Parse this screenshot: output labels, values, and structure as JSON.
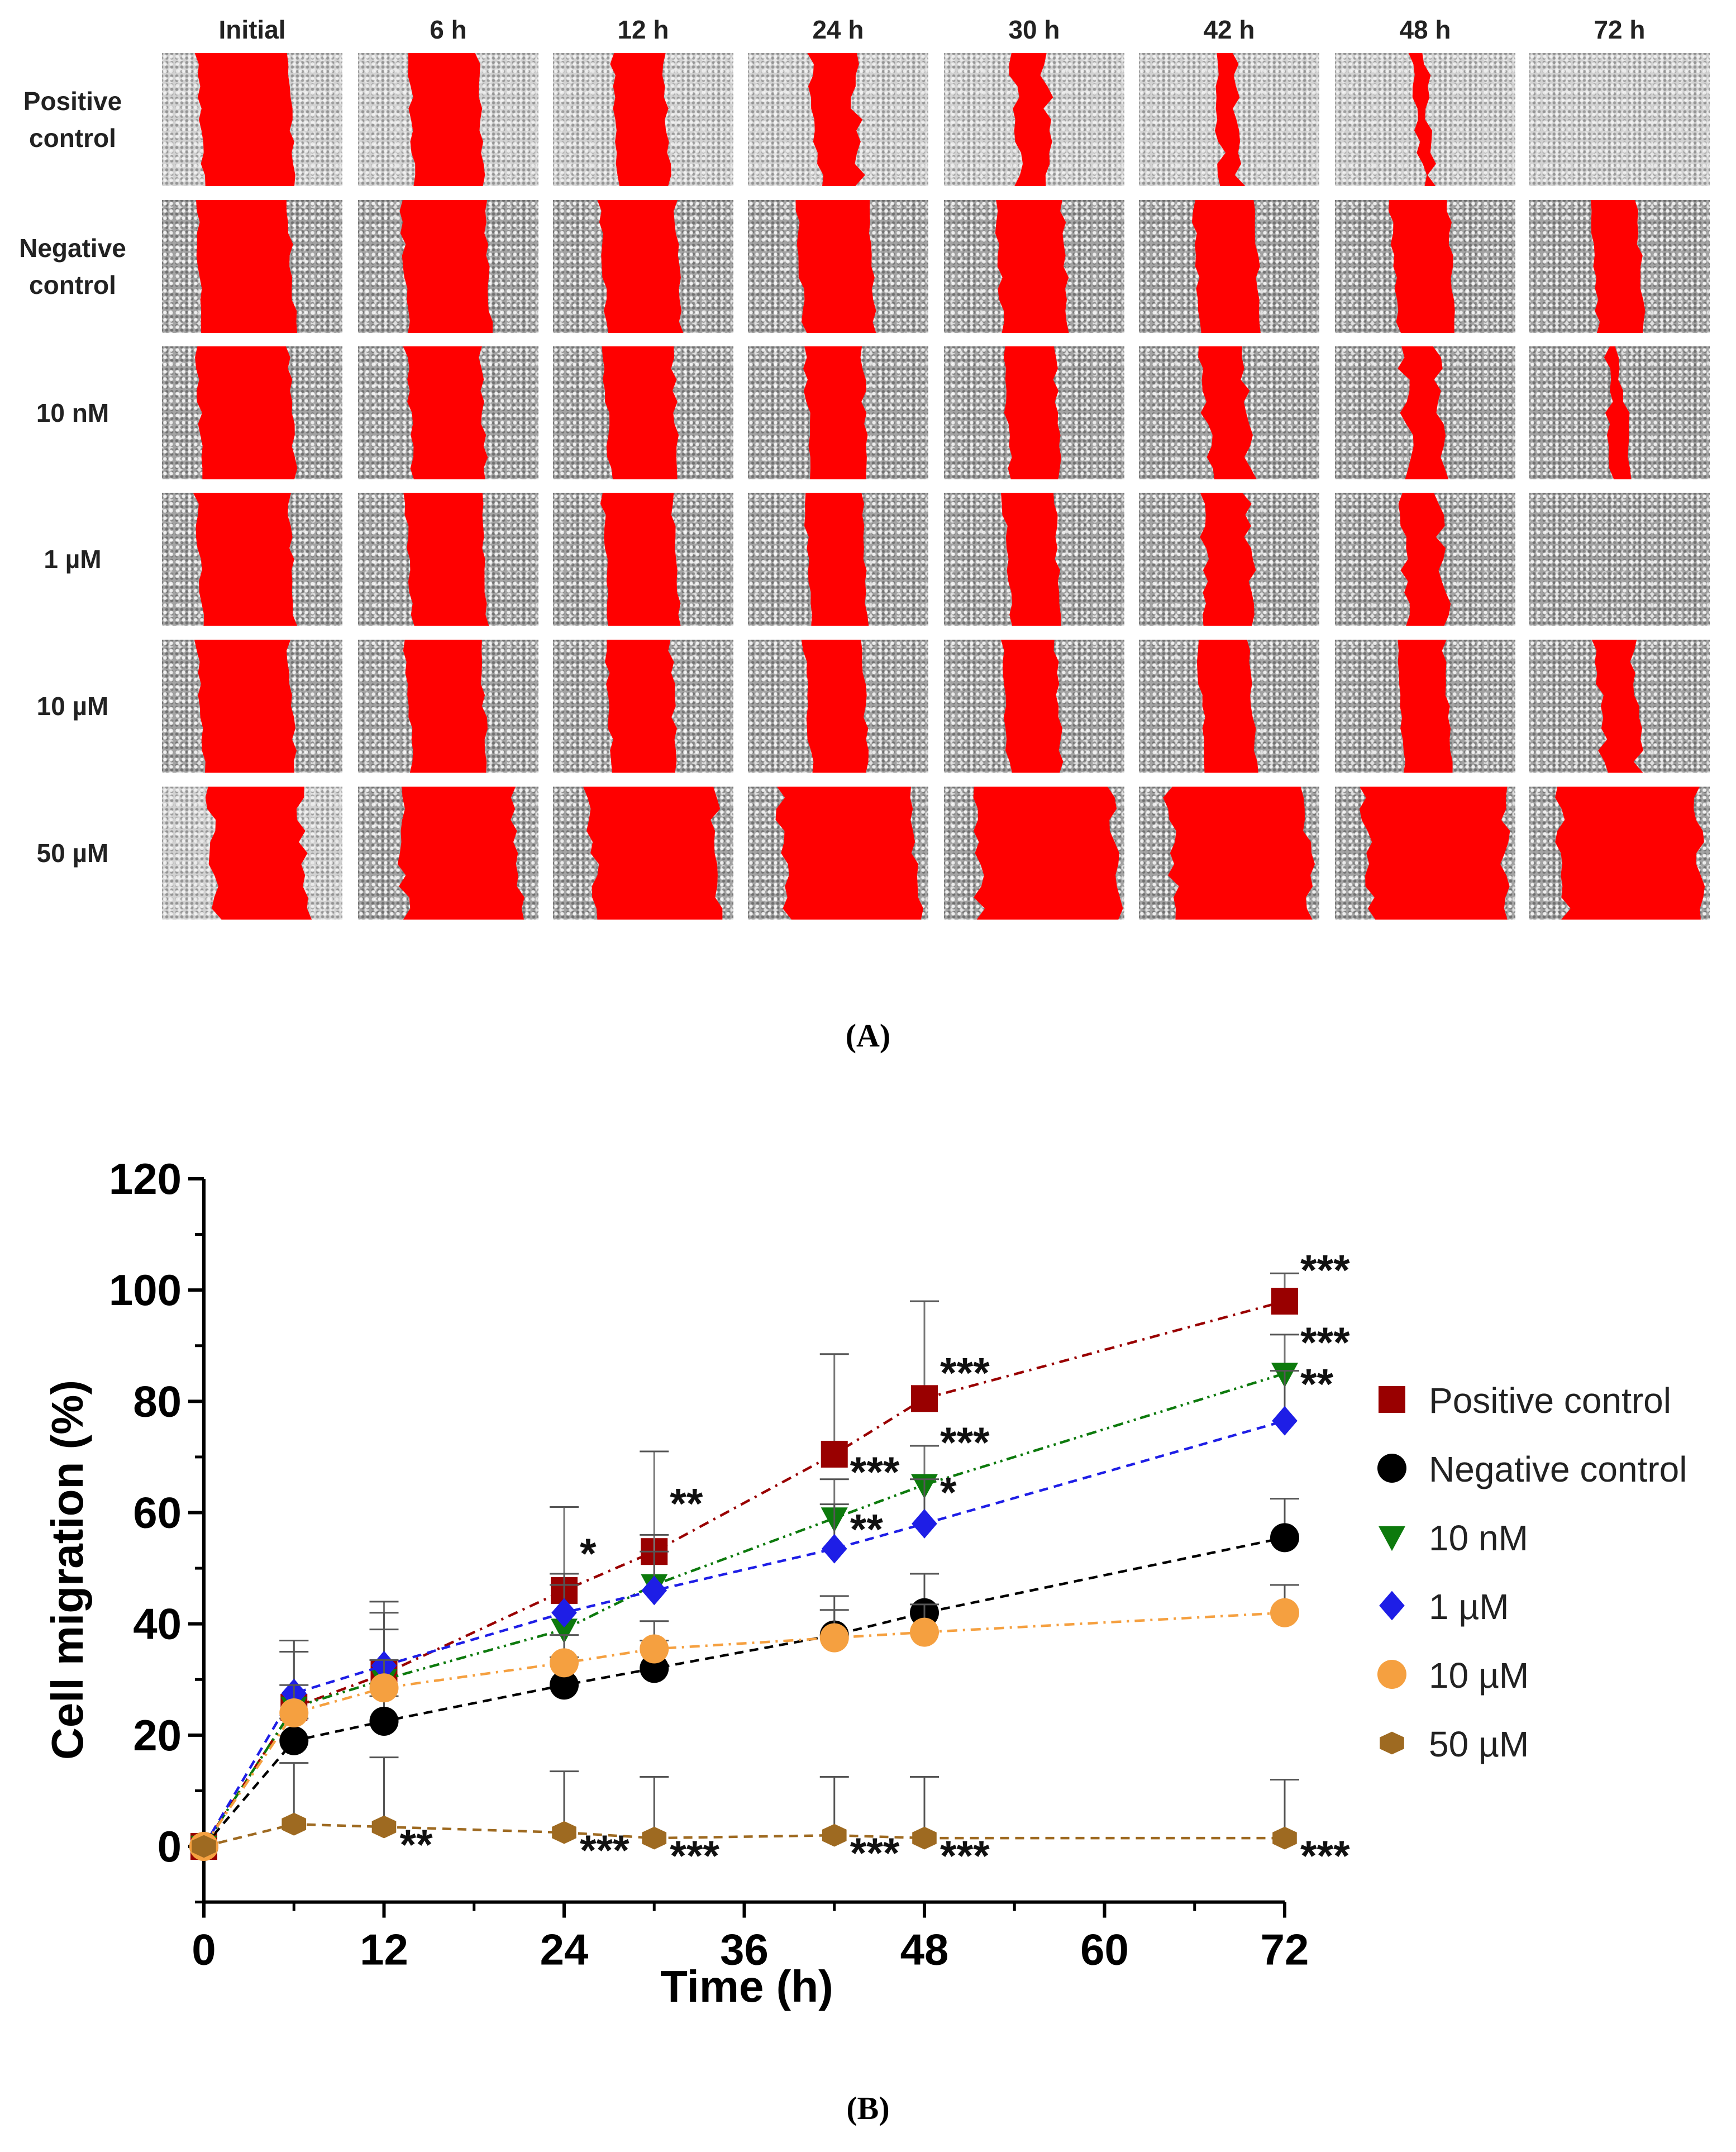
{
  "panel_a": {
    "caption": "(A)",
    "columns": [
      "Initial",
      "6 h",
      "12 h",
      "24 h",
      "30 h",
      "42 h",
      "48 h",
      "72 h"
    ],
    "rows": [
      {
        "label": "Positive\ncontrol",
        "condition": "Positive control",
        "gap_width_percent": [
          100,
          75,
          55,
          45,
          35,
          20,
          10,
          0
        ]
      },
      {
        "label": "Negative\ncontrol",
        "condition": "Negative control",
        "gap_width_percent": [
          100,
          90,
          82,
          78,
          72,
          66,
          62,
          50
        ]
      },
      {
        "label": "10 nM",
        "condition": "10 nM",
        "gap_width_percent": [
          100,
          80,
          75,
          62,
          55,
          45,
          38,
          15
        ]
      },
      {
        "label": "1 µM",
        "condition": "1 µM",
        "gap_width_percent": [
          100,
          82,
          76,
          62,
          55,
          48,
          42,
          0
        ]
      },
      {
        "label": "10 µM",
        "condition": "10 µM",
        "gap_width_percent": [
          100,
          82,
          70,
          62,
          58,
          55,
          52,
          40
        ]
      },
      {
        "label": "50 µM",
        "condition": "50 µM",
        "gap_width_percent": [
          100,
          125,
          135,
          145,
          150,
          150,
          150,
          150
        ]
      }
    ],
    "wound_color": "#ff0000"
  },
  "panel_b": {
    "caption": "(B)"
  },
  "chart_data": {
    "type": "line",
    "title": "",
    "xlabel": "Time (h)",
    "ylabel": "Cell migration (%)",
    "xlim": [
      0,
      72
    ],
    "ylim": [
      -10,
      120
    ],
    "xticks": [
      0,
      12,
      24,
      36,
      48,
      60,
      72
    ],
    "yticks": [
      0,
      20,
      40,
      60,
      80,
      100,
      120
    ],
    "x": [
      0,
      6,
      12,
      24,
      30,
      42,
      48,
      72
    ],
    "grid": false,
    "legend_position": "right",
    "series": [
      {
        "name": "Positive control",
        "color": "#990000",
        "marker": "square",
        "dash": "dashdot",
        "values": [
          0,
          25,
          31,
          46,
          53,
          70.5,
          80.5,
          98
        ],
        "errors": [
          0,
          12,
          13,
          15,
          18,
          18,
          17.5,
          5
        ],
        "significance": [
          "",
          "",
          "",
          "*",
          "**",
          "***",
          "***",
          "***"
        ]
      },
      {
        "name": "Negative control",
        "color": "#000000",
        "marker": "circle",
        "dash": "dashed",
        "values": [
          0,
          19,
          22.5,
          29,
          32,
          38,
          42,
          55.5
        ],
        "errors": [
          0,
          4,
          4.5,
          5,
          5,
          7,
          7,
          7
        ],
        "significance": [
          "",
          "",
          "",
          "",
          "",
          "",
          "",
          ""
        ]
      },
      {
        "name": "10 nM",
        "color": "#0d7a0d",
        "marker": "triangle-down",
        "dash": "dashdotdot",
        "values": [
          0,
          25,
          30,
          39,
          47,
          59,
          65,
          85
        ],
        "errors": [
          0,
          10,
          9,
          8,
          9,
          7,
          7,
          7
        ],
        "significance": [
          "",
          "",
          "",
          "",
          "",
          "**",
          "***",
          "***"
        ]
      },
      {
        "name": "1 µM",
        "color": "#1e1ee6",
        "marker": "diamond",
        "dash": "dashed",
        "values": [
          0,
          27.5,
          32.5,
          42,
          46,
          53.5,
          58,
          76.5
        ],
        "errors": [
          0,
          9.5,
          9.5,
          7,
          7,
          8,
          8,
          9
        ],
        "significance": [
          "",
          "",
          "",
          "",
          "",
          "",
          "*",
          "**"
        ]
      },
      {
        "name": "10 µM",
        "color": "#f5a040",
        "marker": "circle",
        "dash": "dashdot",
        "values": [
          0,
          24,
          28.5,
          33,
          35.5,
          37.5,
          38.5,
          42
        ],
        "errors": [
          0,
          5,
          5,
          5,
          5,
          5,
          5,
          5
        ],
        "significance": [
          "",
          "",
          "",
          "",
          "",
          "",
          "",
          ""
        ]
      },
      {
        "name": "50 µM",
        "color": "#9e6a21",
        "marker": "hexagon",
        "dash": "dashed",
        "values": [
          0,
          4,
          3.5,
          2.5,
          1.5,
          2,
          1.5,
          1.5
        ],
        "errors": [
          0,
          11,
          12.5,
          11,
          11,
          10.5,
          11,
          10.5
        ],
        "significance": [
          "",
          "",
          "**",
          "***",
          "***",
          "***",
          "***",
          "***"
        ]
      }
    ]
  }
}
